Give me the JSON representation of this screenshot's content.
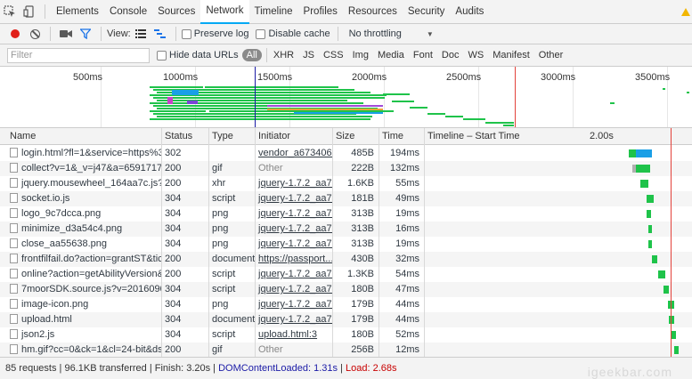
{
  "tabs": [
    {
      "label": "Elements"
    },
    {
      "label": "Console"
    },
    {
      "label": "Sources"
    },
    {
      "label": "Network"
    },
    {
      "label": "Timeline"
    },
    {
      "label": "Profiles"
    },
    {
      "label": "Resources"
    },
    {
      "label": "Security"
    },
    {
      "label": "Audits"
    }
  ],
  "active_tab": "Network",
  "toolbar": {
    "view_label": "View:",
    "preserve_log": "Preserve log",
    "disable_cache": "Disable cache",
    "throttling": "No throttling"
  },
  "filterbar": {
    "placeholder": "Filter",
    "hide_data_urls": "Hide data URLs",
    "types": [
      "All",
      "XHR",
      "JS",
      "CSS",
      "Img",
      "Media",
      "Font",
      "Doc",
      "WS",
      "Manifest",
      "Other"
    ]
  },
  "overview": {
    "ticks": [
      "500ms",
      "1000ms",
      "1500ms",
      "2000ms",
      "2500ms",
      "3000ms",
      "3500ms"
    ]
  },
  "columns": {
    "name": "Name",
    "status": "Status",
    "type": "Type",
    "initiator": "Initiator",
    "size": "Size",
    "time": "Time",
    "timeline": "Timeline – Start Time",
    "timeline_tick": "2.00s"
  },
  "rows": [
    {
      "name": "login.html?fl=1&service=https%3...",
      "status": "302",
      "type": "",
      "initiator": "vendor_a673406...",
      "size": "485B",
      "time": "194ms"
    },
    {
      "name": "collect?v=1&_v=j47&a=6591717...",
      "status": "200",
      "type": "gif",
      "initiator": "Other",
      "size": "222B",
      "time": "132ms"
    },
    {
      "name": "jquery.mousewheel_164aa7c.js?...",
      "status": "200",
      "type": "xhr",
      "initiator": "jquery-1.7.2_aa7...",
      "size": "1.6KB",
      "time": "55ms"
    },
    {
      "name": "socket.io.js",
      "status": "304",
      "type": "script",
      "initiator": "jquery-1.7.2_aa7...",
      "size": "181B",
      "time": "49ms"
    },
    {
      "name": "logo_9c7dcca.png",
      "status": "304",
      "type": "png",
      "initiator": "jquery-1.7.2_aa7...",
      "size": "313B",
      "time": "19ms"
    },
    {
      "name": "minimize_d3a54c4.png",
      "status": "304",
      "type": "png",
      "initiator": "jquery-1.7.2_aa7...",
      "size": "313B",
      "time": "16ms"
    },
    {
      "name": "close_aa55638.png",
      "status": "304",
      "type": "png",
      "initiator": "jquery-1.7.2_aa7...",
      "size": "313B",
      "time": "19ms"
    },
    {
      "name": "frontfilfail.do?action=grantST&tic...",
      "status": "200",
      "type": "document",
      "initiator": "https://passport...",
      "size": "430B",
      "time": "32ms"
    },
    {
      "name": "online?action=getAbilityVersion&...",
      "status": "200",
      "type": "script",
      "initiator": "jquery-1.7.2_aa7...",
      "size": "1.3KB",
      "time": "54ms"
    },
    {
      "name": "7moorSDK.source.js?v=2016090...",
      "status": "304",
      "type": "script",
      "initiator": "jquery-1.7.2_aa7...",
      "size": "180B",
      "time": "47ms"
    },
    {
      "name": "image-icon.png",
      "status": "304",
      "type": "png",
      "initiator": "jquery-1.7.2_aa7...",
      "size": "179B",
      "time": "44ms"
    },
    {
      "name": "upload.html",
      "status": "304",
      "type": "document",
      "initiator": "jquery-1.7.2_aa7...",
      "size": "179B",
      "time": "44ms"
    },
    {
      "name": "json2.js",
      "status": "304",
      "type": "script",
      "initiator": "upload.html:3",
      "size": "180B",
      "time": "52ms"
    },
    {
      "name": "hm.gif?cc=0&ck=1&cl=24-bit&ds...",
      "status": "200",
      "type": "gif",
      "initiator": "Other",
      "size": "256B",
      "time": "12ms"
    }
  ],
  "status": {
    "summary": "85 requests | 96.1KB transferred | Finish: 3.20s | ",
    "dom": "DOMContentLoaded: 1.31s",
    "sep": " | ",
    "load": "Load: 2.68s"
  },
  "watermark": "igeekbar.com",
  "colors": {
    "accent": "#03a9f4",
    "waterfall_wait": "#1fc34a",
    "waterfall_receive": "#1a9fe6",
    "dom_line": "#1a1aa6",
    "load_line": "#e3423b"
  }
}
